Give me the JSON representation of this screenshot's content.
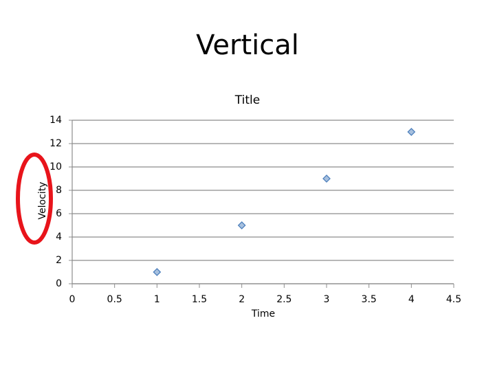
{
  "slide_title": "Vertical",
  "chart_data": {
    "type": "scatter",
    "title": "Title",
    "xlabel": "Time",
    "ylabel": "Velocity",
    "x": [
      1,
      2,
      3,
      4
    ],
    "values": [
      1,
      5,
      9,
      13
    ],
    "color": "#4f81bd",
    "xlim": [
      0,
      4.5
    ],
    "xticks": [
      0,
      0.5,
      1,
      1.5,
      2,
      2.5,
      3,
      3.5,
      4,
      4.5
    ],
    "ylim": [
      0,
      14
    ],
    "yticks": [
      0,
      2,
      4,
      6,
      8,
      10,
      12,
      14
    ],
    "grid": true
  }
}
